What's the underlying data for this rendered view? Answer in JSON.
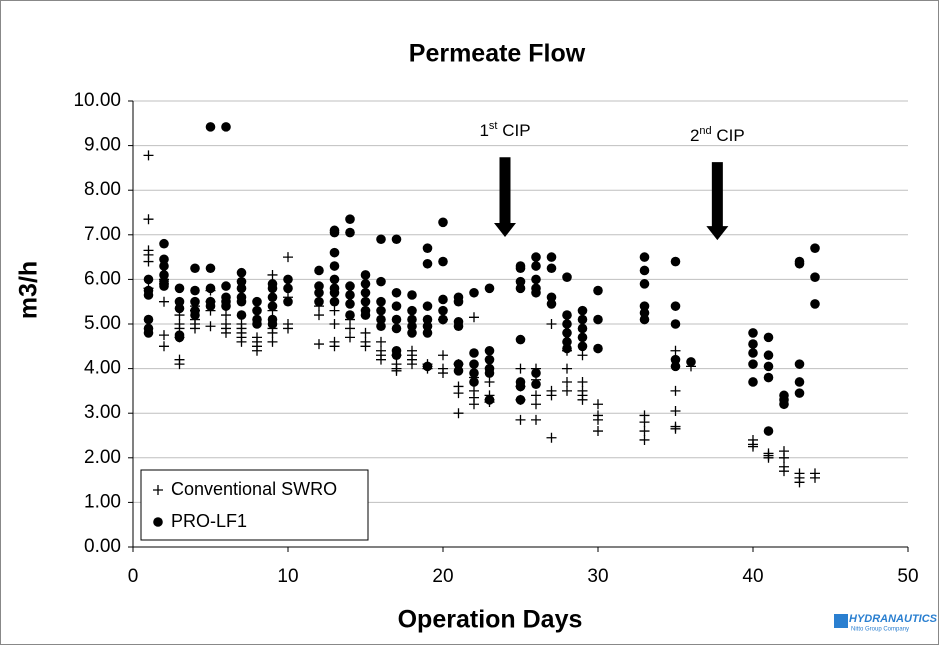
{
  "chart_data": {
    "type": "scatter",
    "title": "Permeate Flow",
    "x_label": "Operation Days",
    "y_label": "m3/h",
    "xlim": [
      0,
      50
    ],
    "xticks": [
      0,
      10,
      20,
      30,
      40,
      50
    ],
    "ylim": [
      0,
      10
    ],
    "yticks": [
      {
        "value": 0,
        "label": "0.00"
      },
      {
        "value": 1,
        "label": "1.00"
      },
      {
        "value": 2,
        "label": "2.00"
      },
      {
        "value": 3,
        "label": "3.00"
      },
      {
        "value": 4,
        "label": "4.00"
      },
      {
        "value": 5,
        "label": "5.00"
      },
      {
        "value": 6,
        "label": "6.00"
      },
      {
        "value": 7,
        "label": "7.00"
      },
      {
        "value": 8,
        "label": "8.00"
      },
      {
        "value": 9,
        "label": "9.00"
      },
      {
        "value": 10,
        "label": "10.00"
      }
    ],
    "grid": true,
    "legend": "lower left",
    "series": [
      {
        "name": "Conventional SWRO",
        "color": "#000000",
        "marker": "plus",
        "x": [
          1,
          1,
          1,
          1,
          1,
          1,
          2,
          2,
          2,
          2,
          2,
          3,
          3,
          3,
          3,
          3,
          3,
          4,
          4,
          4,
          4,
          4,
          5,
          5,
          5,
          5,
          6,
          6,
          6,
          6,
          7,
          7,
          7,
          7,
          7,
          8,
          8,
          8,
          8,
          9,
          9,
          9,
          9,
          9,
          10,
          10,
          10,
          10,
          12,
          12,
          12,
          13,
          13,
          13,
          13,
          14,
          14,
          14,
          15,
          15,
          15,
          16,
          16,
          16,
          16,
          17,
          17,
          17,
          17,
          18,
          18,
          18,
          18,
          19,
          19,
          19,
          20,
          20,
          20,
          20,
          21,
          21,
          21,
          21,
          22,
          22,
          22,
          22,
          22,
          23,
          23,
          23,
          23,
          25,
          25,
          25,
          25,
          26,
          26,
          26,
          26,
          26,
          27,
          27,
          27,
          27,
          28,
          28,
          28,
          28,
          29,
          29,
          29,
          29,
          29,
          30,
          30,
          30,
          30,
          33,
          33,
          33,
          33,
          35,
          35,
          35,
          35,
          35,
          36,
          40,
          40,
          40,
          41,
          41,
          41,
          42,
          42,
          42,
          42,
          43,
          43,
          43,
          44,
          44
        ],
        "values": [
          8.78,
          7.35,
          6.65,
          6.55,
          6.4,
          5.8,
          5.9,
          5.5,
          4.75,
          4.5,
          6.0,
          5.0,
          4.9,
          4.7,
          4.2,
          4.1,
          5.2,
          5.3,
          5.0,
          4.9,
          5.1,
          5.4,
          5.75,
          4.95,
          5.3,
          5.5,
          5.2,
          5.0,
          4.9,
          4.8,
          5.0,
          4.8,
          4.6,
          4.7,
          4.9,
          4.7,
          4.5,
          4.6,
          4.4,
          6.1,
          5.3,
          4.9,
          4.6,
          4.8,
          6.5,
          5.6,
          5.0,
          4.9,
          5.4,
          5.2,
          4.55,
          5.3,
          5.0,
          4.6,
          4.5,
          5.1,
          4.9,
          4.7,
          4.8,
          4.6,
          4.5,
          4.6,
          4.4,
          4.2,
          4.3,
          4.3,
          4.1,
          4.0,
          3.95,
          4.4,
          4.3,
          4.2,
          4.1,
          4.1,
          4.0,
          4.05,
          4.3,
          4.0,
          5.1,
          3.9,
          4.1,
          3.45,
          3.0,
          3.6,
          5.15,
          3.8,
          3.5,
          3.2,
          3.35,
          3.7,
          3.3,
          3.25,
          3.4,
          4.0,
          3.6,
          3.3,
          2.85,
          4.0,
          3.75,
          3.4,
          3.2,
          2.85,
          3.5,
          3.4,
          2.45,
          5.0,
          4.4,
          4.0,
          3.7,
          3.5,
          3.7,
          3.5,
          3.4,
          3.3,
          4.3,
          3.2,
          2.95,
          2.85,
          2.6,
          2.95,
          2.8,
          2.6,
          2.4,
          4.4,
          3.5,
          3.05,
          2.7,
          2.65,
          4.05,
          2.4,
          2.3,
          2.25,
          2.1,
          2.05,
          2.0,
          2.15,
          2.0,
          1.8,
          1.7,
          1.65,
          1.55,
          1.45,
          1.65,
          1.55
        ]
      },
      {
        "name": "PRO-LF1",
        "color": "#000000",
        "marker": "circle",
        "x": [
          1,
          1,
          1,
          1,
          1,
          1,
          2,
          2,
          2,
          2,
          2,
          2,
          3,
          3,
          3,
          3,
          3,
          4,
          4,
          4,
          4,
          4,
          5,
          5,
          5,
          5,
          5,
          6,
          6,
          6,
          6,
          6,
          7,
          7,
          7,
          7,
          7,
          7,
          8,
          8,
          8,
          8,
          9,
          9,
          9,
          9,
          9,
          9,
          10,
          10,
          10,
          12,
          12,
          12,
          12,
          13,
          13,
          13,
          13,
          13,
          13,
          13,
          13,
          14,
          14,
          14,
          14,
          14,
          14,
          15,
          15,
          15,
          15,
          15,
          15,
          16,
          16,
          16,
          16,
          16,
          16,
          17,
          17,
          17,
          17,
          17,
          17,
          17,
          18,
          18,
          18,
          18,
          18,
          19,
          19,
          19,
          19,
          19,
          19,
          19,
          20,
          20,
          20,
          20,
          20,
          21,
          21,
          21,
          21,
          21,
          21,
          22,
          22,
          22,
          22,
          22,
          23,
          23,
          23,
          23,
          23,
          23,
          25,
          25,
          25,
          25,
          25,
          25,
          25,
          25,
          26,
          26,
          26,
          26,
          26,
          26,
          26,
          27,
          27,
          27,
          27,
          28,
          28,
          28,
          28,
          28,
          28,
          29,
          29,
          29,
          29,
          29,
          30,
          30,
          30,
          33,
          33,
          33,
          33,
          33,
          33,
          35,
          35,
          35,
          35,
          35,
          36,
          40,
          40,
          40,
          40,
          40,
          41,
          41,
          41,
          41,
          41,
          42,
          42,
          42,
          43,
          43,
          43,
          43,
          43,
          44,
          44,
          44
        ],
        "values": [
          6.0,
          5.75,
          5.65,
          5.1,
          4.9,
          4.8,
          6.8,
          6.45,
          6.3,
          6.1,
          5.95,
          5.85,
          5.8,
          5.5,
          5.35,
          4.75,
          4.7,
          6.25,
          5.75,
          5.5,
          5.3,
          5.2,
          9.42,
          6.25,
          5.8,
          5.5,
          5.4,
          9.42,
          5.85,
          5.6,
          5.5,
          5.4,
          6.15,
          5.95,
          5.8,
          5.6,
          5.5,
          5.2,
          5.5,
          5.3,
          5.1,
          5.0,
          5.9,
          5.8,
          5.6,
          5.4,
          5.1,
          5.0,
          6.0,
          5.8,
          5.5,
          6.2,
          5.85,
          5.7,
          5.5,
          7.1,
          7.05,
          6.6,
          6.3,
          6.0,
          5.8,
          5.7,
          5.5,
          7.35,
          7.05,
          5.85,
          5.65,
          5.45,
          5.2,
          6.1,
          5.9,
          5.7,
          5.5,
          5.3,
          5.2,
          6.9,
          5.95,
          5.5,
          5.3,
          5.1,
          4.95,
          6.9,
          5.7,
          5.4,
          5.1,
          4.9,
          4.4,
          4.3,
          5.65,
          5.3,
          5.1,
          4.95,
          4.8,
          6.7,
          6.35,
          5.4,
          5.1,
          4.95,
          4.8,
          4.05,
          7.28,
          6.4,
          5.55,
          5.3,
          5.1,
          5.6,
          5.5,
          5.05,
          4.95,
          4.1,
          3.95,
          5.7,
          4.35,
          4.1,
          3.9,
          3.7,
          5.8,
          4.4,
          4.2,
          4.0,
          3.9,
          3.3,
          6.3,
          6.25,
          5.95,
          5.8,
          4.65,
          3.7,
          3.6,
          3.3,
          6.5,
          6.3,
          6.0,
          5.8,
          5.7,
          3.9,
          3.65,
          6.5,
          6.25,
          5.6,
          5.45,
          6.05,
          5.2,
          5.0,
          4.8,
          4.6,
          4.45,
          5.3,
          5.1,
          4.9,
          4.7,
          4.5,
          5.75,
          5.1,
          4.45,
          6.5,
          6.2,
          5.9,
          5.4,
          5.25,
          5.1,
          6.4,
          5.4,
          5.0,
          4.2,
          4.05,
          4.15,
          4.8,
          4.55,
          4.35,
          4.1,
          3.7,
          4.7,
          4.3,
          4.05,
          3.8,
          2.6,
          3.4,
          3.3,
          3.2,
          6.4,
          6.35,
          4.1,
          3.7,
          3.45,
          6.7,
          6.05,
          5.45
        ]
      }
    ],
    "annotations": [
      {
        "x": 24,
        "arrow_top": 8.74,
        "arrow_bottom": 6.95,
        "label_parts": [
          "1",
          "st",
          " CIP"
        ]
      },
      {
        "x": 37.7,
        "arrow_top": 8.63,
        "arrow_bottom": 6.88,
        "label_parts": [
          "2",
          "nd",
          " CIP"
        ]
      }
    ],
    "logo": {
      "name": "HYDRANAUTICS",
      "tagline": "Nitto Group Company"
    }
  }
}
